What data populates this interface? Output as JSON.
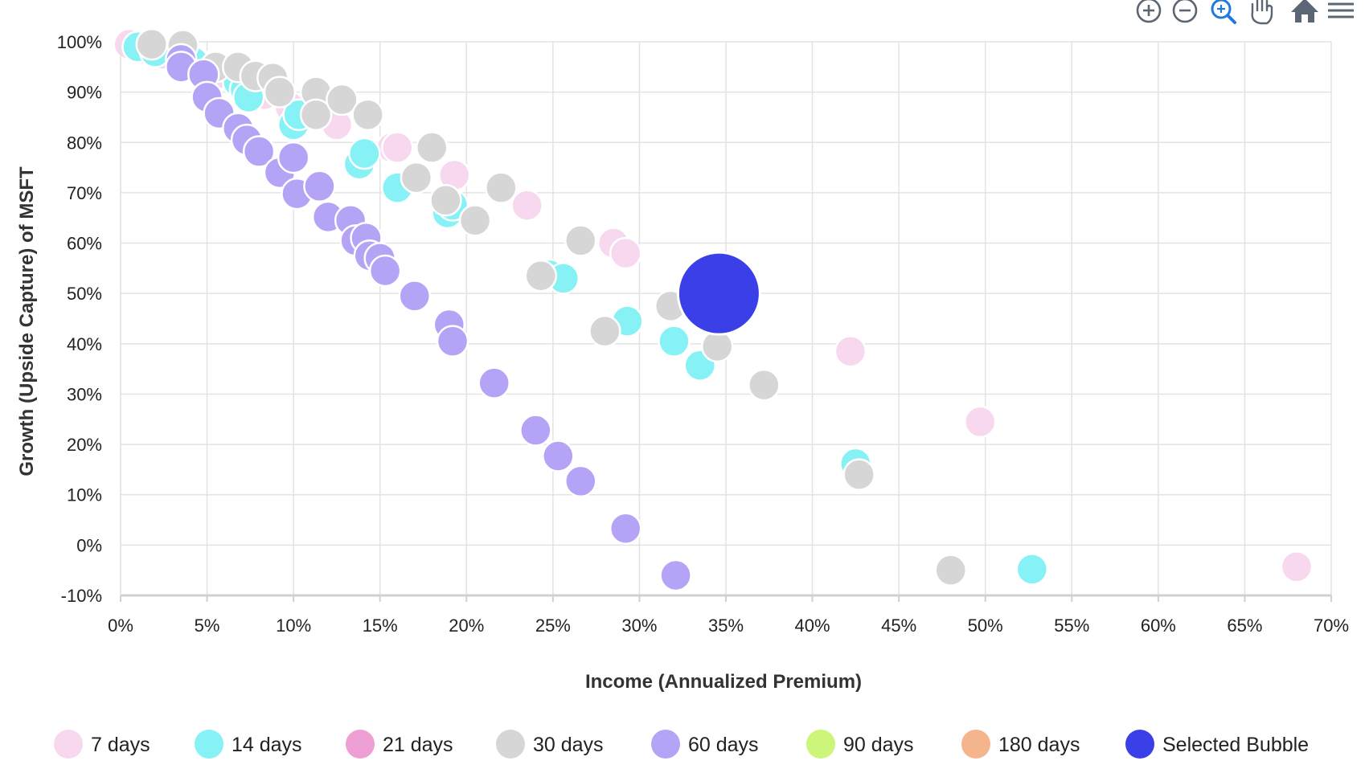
{
  "toolbar": {
    "items": [
      {
        "name": "zoom-in-icon",
        "color": "#5a6673"
      },
      {
        "name": "zoom-out-icon",
        "color": "#5a6673"
      },
      {
        "name": "selection-zoom-icon",
        "color": "#1f7ae0"
      },
      {
        "name": "pan-hand-icon",
        "color": "#5a6673"
      },
      {
        "name": "reset-home-icon",
        "color": "#5a6673"
      },
      {
        "name": "menu-icon",
        "color": "#5a6673"
      }
    ]
  },
  "colors": {
    "7 days": "#f8d8ef",
    "14 days": "#86f2f6",
    "21 days": "#ee9fd3",
    "30 days": "#d6d6d6",
    "60 days": "#b5a3f5",
    "90 days": "#ccf57a",
    "180 days": "#f4b48c",
    "Selected Bubble": "#3a3fe8"
  },
  "chart_data": {
    "type": "scatter",
    "xlabel": "Income (Annualized Premium)",
    "ylabel": "Growth (Upside Capture) of MSFT",
    "xlim": [
      0,
      70
    ],
    "ylim": [
      -10,
      100
    ],
    "xticks": [
      "0%",
      "5%",
      "10%",
      "15%",
      "20%",
      "25%",
      "30%",
      "35%",
      "40%",
      "45%",
      "50%",
      "55%",
      "60%",
      "65%",
      "70%"
    ],
    "yticks": [
      "100%",
      "90%",
      "80%",
      "70%",
      "60%",
      "50%",
      "40%",
      "30%",
      "20%",
      "10%",
      "0%",
      "-10%"
    ],
    "grid": true,
    "legend_position": "bottom",
    "series": [
      {
        "name": "7 days",
        "points": [
          [
            0.5,
            99.5
          ],
          [
            1.5,
            98.5
          ],
          [
            2.5,
            97.5
          ],
          [
            4.5,
            95.5
          ],
          [
            5.5,
            93.5
          ],
          [
            7.3,
            91
          ],
          [
            8.3,
            89.5
          ],
          [
            9.8,
            87
          ],
          [
            12.5,
            83.5
          ],
          [
            15.7,
            79
          ],
          [
            16,
            79
          ],
          [
            19.3,
            73.5
          ],
          [
            23.5,
            67.5
          ],
          [
            28.5,
            60
          ],
          [
            29.2,
            58
          ],
          [
            42.2,
            38.5
          ],
          [
            49.7,
            24.5
          ],
          [
            68,
            -4.3
          ]
        ]
      },
      {
        "name": "14 days",
        "points": [
          [
            1,
            99
          ],
          [
            2,
            98
          ],
          [
            3.8,
            97
          ],
          [
            4.2,
            96
          ],
          [
            6.8,
            92
          ],
          [
            7.2,
            90.5
          ],
          [
            7.4,
            89
          ],
          [
            10,
            83.5
          ],
          [
            10.3,
            85.5
          ],
          [
            13.8,
            75.7
          ],
          [
            14.1,
            77.8
          ],
          [
            16,
            71
          ],
          [
            18.9,
            66
          ],
          [
            19.2,
            67.5
          ],
          [
            24.8,
            53.7
          ],
          [
            25.6,
            53
          ],
          [
            29.3,
            44.5
          ],
          [
            32,
            40.5
          ],
          [
            33.5,
            35.7
          ],
          [
            42.5,
            16.2
          ],
          [
            52.7,
            -4.8
          ]
        ]
      },
      {
        "name": "21 days",
        "points": []
      },
      {
        "name": "30 days",
        "points": [
          [
            1.8,
            99.5
          ],
          [
            3.6,
            99.3
          ],
          [
            5.5,
            95
          ],
          [
            6.8,
            95
          ],
          [
            7.8,
            93.2
          ],
          [
            8.8,
            92.8
          ],
          [
            9.2,
            90
          ],
          [
            11.3,
            90
          ],
          [
            11.3,
            85.5
          ],
          [
            12.8,
            88.5
          ],
          [
            14.3,
            85.5
          ],
          [
            18,
            79
          ],
          [
            17.1,
            73
          ],
          [
            18.8,
            68.5
          ],
          [
            22,
            71
          ],
          [
            20.5,
            64.5
          ],
          [
            26.6,
            60.5
          ],
          [
            24.3,
            53.5
          ],
          [
            28,
            42.5
          ],
          [
            31.8,
            47.5
          ],
          [
            34.5,
            39.5
          ],
          [
            37.2,
            31.8
          ],
          [
            42.7,
            14
          ],
          [
            48,
            -5
          ]
        ]
      },
      {
        "name": "60 days",
        "points": [
          [
            3.5,
            96.5
          ],
          [
            3.5,
            95
          ],
          [
            4.8,
            93.5
          ],
          [
            5,
            89
          ],
          [
            5.7,
            85.8
          ],
          [
            6.8,
            82.8
          ],
          [
            7.3,
            80.5
          ],
          [
            8,
            78.2
          ],
          [
            9.2,
            74
          ],
          [
            10,
            77
          ],
          [
            10.2,
            69.8
          ],
          [
            11.5,
            71.3
          ],
          [
            12,
            65.2
          ],
          [
            13.3,
            64.5
          ],
          [
            13.6,
            60.5
          ],
          [
            14.2,
            61
          ],
          [
            14.4,
            57.5
          ],
          [
            15,
            57
          ],
          [
            15.3,
            54.5
          ],
          [
            17,
            49.5
          ],
          [
            19,
            43.8
          ],
          [
            19.2,
            40.5
          ],
          [
            21.6,
            32.2
          ],
          [
            24,
            22.8
          ],
          [
            25.3,
            17.7
          ],
          [
            26.6,
            12.7
          ],
          [
            29.2,
            3.3
          ],
          [
            32.1,
            -6
          ]
        ]
      },
      {
        "name": "90 days",
        "points": []
      },
      {
        "name": "180 days",
        "points": []
      },
      {
        "name": "Selected Bubble",
        "points": [
          [
            34.6,
            50
          ]
        ]
      }
    ]
  }
}
